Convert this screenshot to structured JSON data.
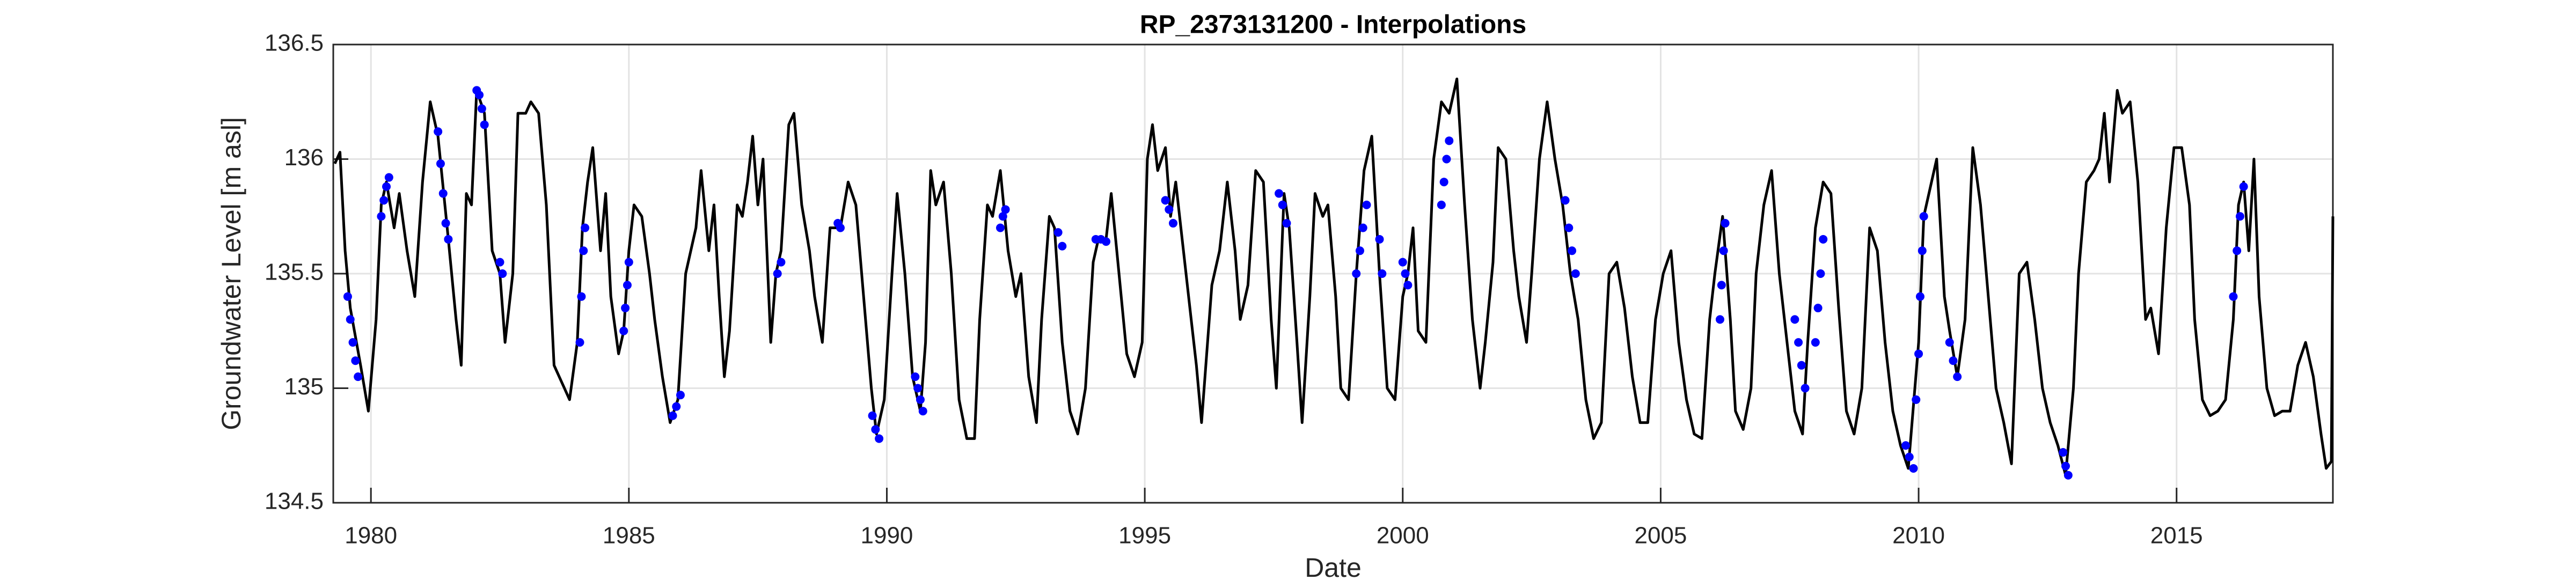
{
  "chart_data": {
    "type": "line",
    "title": "RP_2373131200 - Interpolations",
    "xlabel": "Date",
    "ylabel": "Groundwater Level [m asl]",
    "xlim": [
      1979.27,
      2018.03
    ],
    "ylim": [
      134.5,
      136.5
    ],
    "xticks": [
      1980,
      1985,
      1990,
      1995,
      2000,
      2005,
      2010,
      2015
    ],
    "yticks": [
      134.5,
      135,
      135.5,
      136,
      136.5
    ],
    "grid": true,
    "series": [
      {
        "color": "#000000",
        "marker": "none",
        "x": [
          1979.3,
          1979.4,
          1979.5,
          1979.6,
          1979.8,
          1979.95,
          1980.1,
          1980.2,
          1980.3,
          1980.45,
          1980.55,
          1980.7,
          1980.85,
          1981.0,
          1981.15,
          1981.3,
          1981.5,
          1981.65,
          1981.75,
          1981.85,
          1981.95,
          1982.05,
          1982.2,
          1982.35,
          1982.5,
          1982.6,
          1982.75,
          1982.85,
          1983.0,
          1983.1,
          1983.25,
          1983.4,
          1983.55,
          1983.75,
          1983.85,
          1984.0,
          1984.1,
          1984.2,
          1984.3,
          1984.45,
          1984.55,
          1984.65,
          1984.8,
          1984.9,
          1985.0,
          1985.1,
          1985.25,
          1985.4,
          1985.5,
          1985.65,
          1985.8,
          1985.95,
          1986.1,
          1986.3,
          1986.4,
          1986.55,
          1986.65,
          1986.75,
          1986.85,
          1986.95,
          1987.1,
          1987.2,
          1987.3,
          1987.4,
          1987.5,
          1987.6,
          1987.75,
          1987.85,
          1987.95,
          1988.1,
          1988.2,
          1988.35,
          1988.5,
          1988.6,
          1988.75,
          1988.9,
          1989.1,
          1989.25,
          1989.4,
          1989.55,
          1989.7,
          1989.8,
          1989.95,
          1990.1,
          1990.2,
          1990.35,
          1990.5,
          1990.65,
          1990.75,
          1990.85,
          1990.95,
          1991.1,
          1991.25,
          1991.4,
          1991.55,
          1991.7,
          1991.8,
          1991.95,
          1992.05,
          1992.2,
          1992.35,
          1992.5,
          1992.6,
          1992.75,
          1992.9,
          1993.0,
          1993.15,
          1993.25,
          1993.4,
          1993.55,
          1993.7,
          1993.85,
          1994.0,
          1994.1,
          1994.25,
          1994.35,
          1994.5,
          1994.65,
          1994.8,
          1994.95,
          1995.05,
          1995.15,
          1995.25,
          1995.4,
          1995.5,
          1995.6,
          1995.75,
          1995.9,
          1996.0,
          1996.1,
          1996.3,
          1996.45,
          1996.6,
          1996.75,
          1996.85,
          1997.0,
          1997.15,
          1997.3,
          1997.45,
          1997.55,
          1997.7,
          1997.8,
          1997.95,
          1998.05,
          1998.2,
          1998.3,
          1998.45,
          1998.55,
          1998.7,
          1998.8,
          1998.95,
          1999.1,
          1999.25,
          1999.4,
          1999.55,
          1999.7,
          1999.85,
          2000.0,
          2000.1,
          2000.2,
          2000.3,
          2000.45,
          2000.6,
          2000.75,
          2000.9,
          2001.05,
          2001.2,
          2001.35,
          2001.5,
          2001.6,
          2001.75,
          2001.85,
          2002.0,
          2002.15,
          2002.25,
          2002.4,
          2002.5,
          2002.65,
          2002.8,
          2002.95,
          2003.1,
          2003.25,
          2003.4,
          2003.55,
          2003.7,
          2003.85,
          2004.0,
          2004.15,
          2004.3,
          2004.45,
          2004.6,
          2004.75,
          2004.9,
          2005.05,
          2005.2,
          2005.35,
          2005.5,
          2005.65,
          2005.8,
          2005.95,
          2006.05,
          2006.2,
          2006.35,
          2006.45,
          2006.6,
          2006.75,
          2006.85,
          2007.0,
          2007.15,
          2007.3,
          2007.45,
          2007.6,
          2007.75,
          2007.85,
          2008.0,
          2008.15,
          2008.3,
          2008.45,
          2008.6,
          2008.75,
          2008.9,
          2009.05,
          2009.2,
          2009.35,
          2009.5,
          2009.65,
          2009.8,
          2010.0,
          2010.1,
          2010.25,
          2010.35,
          2010.5,
          2010.6,
          2010.75,
          2010.9,
          2011.05,
          2011.2,
          2011.35,
          2011.5,
          2011.65,
          2011.8,
          2011.95,
          2012.1,
          2012.25,
          2012.4,
          2012.55,
          2012.7,
          2012.85,
          2013.0,
          2013.1,
          2013.25,
          2013.4,
          2013.5,
          2013.6,
          2013.7,
          2013.85,
          2013.95,
          2014.1,
          2014.25,
          2014.4,
          2014.5,
          2014.65,
          2014.8,
          2014.95,
          2015.1,
          2015.25,
          2015.35,
          2015.5,
          2015.65,
          2015.8,
          2015.95,
          2016.1,
          2016.2,
          2016.3,
          2016.4,
          2016.5,
          2016.6,
          2016.75,
          2016.9,
          2017.05,
          2017.2,
          2017.35,
          2017.5,
          2017.65,
          2017.8,
          2017.9,
          2018.0,
          2018.03
        ],
        "values": [
          135.98,
          136.03,
          135.6,
          135.35,
          135.1,
          134.9,
          135.3,
          135.8,
          135.9,
          135.7,
          135.85,
          135.6,
          135.4,
          135.9,
          136.25,
          136.1,
          135.65,
          135.3,
          135.1,
          135.85,
          135.8,
          136.3,
          136.2,
          135.6,
          135.5,
          135.2,
          135.5,
          136.2,
          136.2,
          136.25,
          136.2,
          135.8,
          135.1,
          135.0,
          134.95,
          135.2,
          135.7,
          135.9,
          136.05,
          135.6,
          135.85,
          135.4,
          135.15,
          135.25,
          135.6,
          135.8,
          135.75,
          135.5,
          135.3,
          135.05,
          134.85,
          134.95,
          135.5,
          135.7,
          135.95,
          135.6,
          135.8,
          135.4,
          135.05,
          135.25,
          135.8,
          135.75,
          135.9,
          136.1,
          135.8,
          136.0,
          135.2,
          135.5,
          135.6,
          136.15,
          136.2,
          135.8,
          135.6,
          135.4,
          135.2,
          135.7,
          135.7,
          135.9,
          135.8,
          135.4,
          135.0,
          134.8,
          134.95,
          135.5,
          135.85,
          135.5,
          135.05,
          134.9,
          135.2,
          135.95,
          135.8,
          135.9,
          135.5,
          134.95,
          134.78,
          134.78,
          135.3,
          135.8,
          135.75,
          135.95,
          135.6,
          135.4,
          135.5,
          135.05,
          134.85,
          135.3,
          135.75,
          135.7,
          135.2,
          134.9,
          134.8,
          135.0,
          135.55,
          135.65,
          135.65,
          135.85,
          135.5,
          135.15,
          135.05,
          135.2,
          136.0,
          136.15,
          135.95,
          136.05,
          135.75,
          135.9,
          135.6,
          135.3,
          135.1,
          134.85,
          135.45,
          135.6,
          135.9,
          135.6,
          135.3,
          135.45,
          135.95,
          135.9,
          135.3,
          135.0,
          135.85,
          135.7,
          135.2,
          134.85,
          135.4,
          135.85,
          135.75,
          135.8,
          135.4,
          135.0,
          134.95,
          135.5,
          135.95,
          136.1,
          135.5,
          135.0,
          134.95,
          135.4,
          135.5,
          135.7,
          135.25,
          135.2,
          136.0,
          136.25,
          136.2,
          136.35,
          135.8,
          135.3,
          135.0,
          135.2,
          135.55,
          136.05,
          136.0,
          135.6,
          135.4,
          135.2,
          135.5,
          136.0,
          136.25,
          136.0,
          135.8,
          135.5,
          135.3,
          134.95,
          134.78,
          134.85,
          135.5,
          135.55,
          135.35,
          135.05,
          134.85,
          134.85,
          135.3,
          135.5,
          135.6,
          135.2,
          134.95,
          134.8,
          134.78,
          135.3,
          135.5,
          135.75,
          135.3,
          134.9,
          134.82,
          135.0,
          135.5,
          135.8,
          135.95,
          135.5,
          135.2,
          134.9,
          134.8,
          135.2,
          135.7,
          135.9,
          135.85,
          135.35,
          134.9,
          134.8,
          135.0,
          135.7,
          135.6,
          135.2,
          134.9,
          134.75,
          134.65,
          135.2,
          135.75,
          135.9,
          136.0,
          135.4,
          135.25,
          135.05,
          135.3,
          136.05,
          135.8,
          135.4,
          135.0,
          134.85,
          134.67,
          135.5,
          135.55,
          135.3,
          135.0,
          134.85,
          134.75,
          134.62,
          135.0,
          135.5,
          135.9,
          135.95,
          136.0,
          136.2,
          135.9,
          136.3,
          136.2,
          136.25,
          135.9,
          135.3,
          135.35,
          135.15,
          135.7,
          136.05,
          136.05,
          135.8,
          135.3,
          134.95,
          134.88,
          134.9,
          134.95,
          135.3,
          135.8,
          135.9,
          135.6,
          136.0,
          135.4,
          135.0,
          134.88,
          134.9,
          134.9,
          135.1,
          135.2,
          135.05,
          134.8,
          134.65,
          134.68,
          135.75
        ]
      },
      {
        "color": "#0000ff",
        "marker": "dot",
        "x": [
          1979.55,
          1979.6,
          1979.65,
          1979.7,
          1979.75,
          1980.2,
          1980.25,
          1980.3,
          1980.35,
          1981.3,
          1981.35,
          1981.4,
          1981.45,
          1981.5,
          1982.05,
          1982.1,
          1982.15,
          1982.2,
          1982.5,
          1982.55,
          1984.05,
          1984.08,
          1984.12,
          1984.15,
          1984.9,
          1984.93,
          1984.97,
          1985.0,
          1985.85,
          1985.92,
          1986.0,
          1987.88,
          1987.95,
          1989.05,
          1989.1,
          1989.72,
          1989.78,
          1989.85,
          1990.55,
          1990.6,
          1990.65,
          1990.7,
          1992.2,
          1992.25,
          1992.3,
          1993.32,
          1993.4,
          1994.05,
          1994.15,
          1994.25,
          1995.4,
          1995.47,
          1995.55,
          1997.6,
          1997.67,
          1997.75,
          1999.1,
          1999.17,
          1999.23,
          1999.3,
          1999.55,
          1999.6,
          2000.0,
          2000.05,
          2000.1,
          2000.75,
          2000.8,
          2000.85,
          2000.9,
          2003.15,
          2003.22,
          2003.28,
          2003.35,
          2006.15,
          2006.18,
          2006.22,
          2006.25,
          2007.6,
          2007.67,
          2007.73,
          2007.8,
          2008.0,
          2008.05,
          2008.1,
          2008.15,
          2009.75,
          2009.82,
          2009.9,
          2009.95,
          2010.0,
          2010.03,
          2010.07,
          2010.1,
          2010.6,
          2010.67,
          2010.75,
          2012.8,
          2012.85,
          2012.9,
          2016.1,
          2016.17,
          2016.23,
          2016.3
        ],
        "values": [
          135.4,
          135.3,
          135.2,
          135.12,
          135.05,
          135.75,
          135.82,
          135.88,
          135.92,
          136.12,
          135.98,
          135.85,
          135.72,
          135.65,
          136.3,
          136.28,
          136.22,
          136.15,
          135.55,
          135.5,
          135.2,
          135.4,
          135.6,
          135.7,
          135.25,
          135.35,
          135.45,
          135.55,
          134.88,
          134.92,
          134.97,
          135.5,
          135.55,
          135.72,
          135.7,
          134.88,
          134.82,
          134.78,
          135.05,
          135.0,
          134.95,
          134.9,
          135.7,
          135.75,
          135.78,
          135.68,
          135.62,
          135.65,
          135.65,
          135.64,
          135.82,
          135.78,
          135.72,
          135.85,
          135.8,
          135.72,
          135.5,
          135.6,
          135.7,
          135.8,
          135.65,
          135.5,
          135.55,
          135.5,
          135.45,
          135.8,
          135.9,
          136.0,
          136.08,
          135.82,
          135.7,
          135.6,
          135.5,
          135.3,
          135.45,
          135.6,
          135.72,
          135.3,
          135.2,
          135.1,
          135.0,
          135.2,
          135.35,
          135.5,
          135.65,
          134.75,
          134.7,
          134.65,
          134.95,
          135.15,
          135.4,
          135.6,
          135.75,
          135.2,
          135.12,
          135.05,
          134.72,
          134.66,
          134.62,
          135.4,
          135.6,
          135.75,
          135.88
        ]
      }
    ]
  }
}
